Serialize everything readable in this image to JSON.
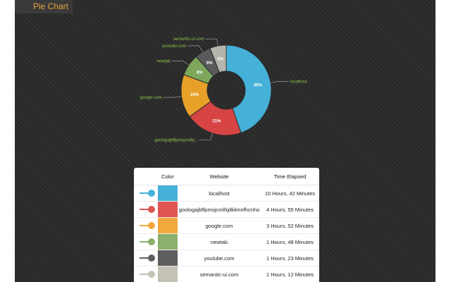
{
  "header": {
    "title": "Pie Chart"
  },
  "chart_data": {
    "type": "pie",
    "categories": [
      "localhost",
      "goologajbffpmojcmlhjdklimnfhcnho",
      "google.com",
      "newtab",
      "youtube.com",
      "semantic-ui.com"
    ],
    "values": [
      46,
      21,
      16,
      8,
      6,
      6
    ],
    "slice_labels": [
      "localhost",
      "goologajbffpmojcmlhj...",
      "google.com",
      "newtab",
      "youtube.com",
      "semantic-ui.com"
    ],
    "colors": [
      "#45b1d8",
      "#d64444",
      "#e8a128",
      "#7da85c",
      "#5a5a5a",
      "#b5b5ad"
    ],
    "donut": true
  },
  "table": {
    "headers": {
      "color": "Color",
      "website": "Website",
      "time": "Time Elapsed"
    },
    "rows": [
      {
        "website": "localhost",
        "time": "10 Hours, 42 Minutes",
        "color": "#45b1d8"
      },
      {
        "website": "goologajbffpmojcmlhjdklimnfhcnho",
        "time": "4 Hours, 55 Minutes",
        "color": "#e05454"
      },
      {
        "website": "google.com",
        "time": "3 Hours, 52 Minutes",
        "color": "#f3a83b"
      },
      {
        "website": "newtab",
        "time": "1 Hours, 48 Minutes",
        "color": "#8bb06b"
      },
      {
        "website": "youtube.com",
        "time": "1 Hours, 23 Minutes",
        "color": "#5e5e5e"
      },
      {
        "website": "semantic-ui.com",
        "time": "1 Hours, 12 Minutes",
        "color": "#c4c1b5"
      }
    ]
  }
}
